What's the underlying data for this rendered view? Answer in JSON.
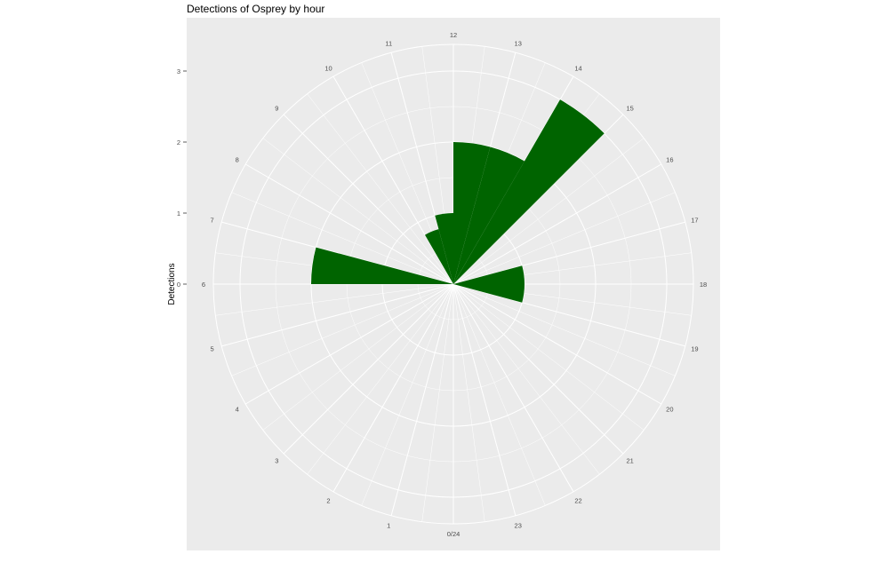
{
  "chart_data": {
    "type": "bar",
    "coord": "polar",
    "title": "Detections of Osprey by hour",
    "xlabel": "",
    "ylabel": "Detections",
    "hour_labels": [
      "0/24",
      "1",
      "2",
      "3",
      "4",
      "5",
      "6",
      "7",
      "8",
      "9",
      "10",
      "11",
      "12",
      "13",
      "14",
      "15",
      "16",
      "17",
      "18",
      "19",
      "20",
      "21",
      "22",
      "23"
    ],
    "y_ticks": [
      "0",
      "1",
      "2",
      "3"
    ],
    "ylim": [
      0,
      3
    ],
    "grid": true,
    "bar_color": "#006400",
    "panel_color": "#ebebeb",
    "grid_color": "#ffffff",
    "categories": [
      0,
      1,
      2,
      3,
      4,
      5,
      6,
      7,
      8,
      9,
      10,
      11,
      12,
      13,
      14,
      15,
      16,
      17,
      18,
      19,
      20,
      21,
      22,
      23
    ],
    "values": [
      0,
      0,
      0,
      0,
      0,
      0,
      2,
      0,
      0,
      0,
      0.8,
      1,
      2,
      2,
      3,
      0,
      0,
      1,
      1,
      0,
      0,
      0,
      0,
      0
    ]
  }
}
